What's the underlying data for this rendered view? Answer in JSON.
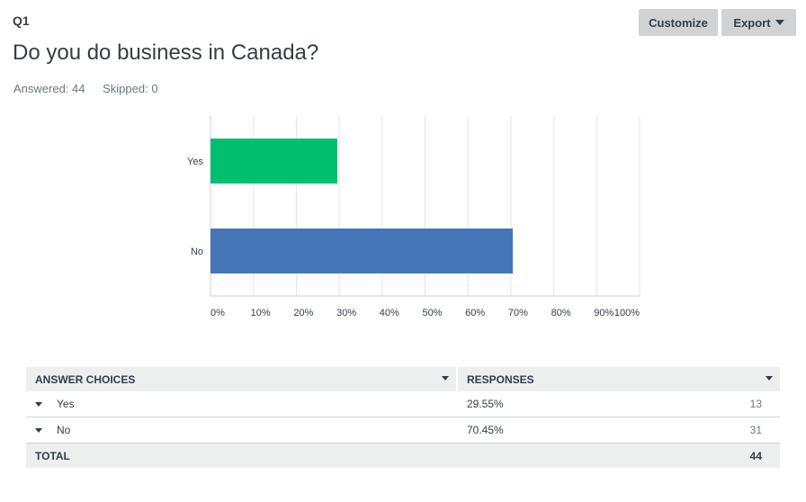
{
  "question": {
    "number": "Q1",
    "title": "Do you do business in Canada?",
    "answered": "Answered: 44",
    "skipped": "Skipped: 0"
  },
  "toolbar": {
    "customize_label": "Customize",
    "export_label": "Export"
  },
  "colors": {
    "yes_bar": "#00bf6f",
    "no_bar": "#4775b9",
    "grid": "#e3e4e5",
    "axis": "#d0d2d3"
  },
  "chart_data": {
    "type": "bar",
    "orientation": "horizontal",
    "categories": [
      "Yes",
      "No"
    ],
    "values": [
      29.55,
      70.45
    ],
    "xlim": [
      0,
      100
    ],
    "x_ticks": [
      "0%",
      "10%",
      "20%",
      "30%",
      "40%",
      "50%",
      "60%",
      "70%",
      "80%",
      "90%",
      "100%"
    ],
    "grid": true
  },
  "table": {
    "headers": [
      "ANSWER CHOICES",
      "RESPONSES"
    ],
    "rows": [
      {
        "choice": "Yes",
        "percent": "29.55%",
        "count": "13"
      },
      {
        "choice": "No",
        "percent": "70.45%",
        "count": "31"
      }
    ],
    "total_label": "TOTAL",
    "total_count": "44"
  }
}
